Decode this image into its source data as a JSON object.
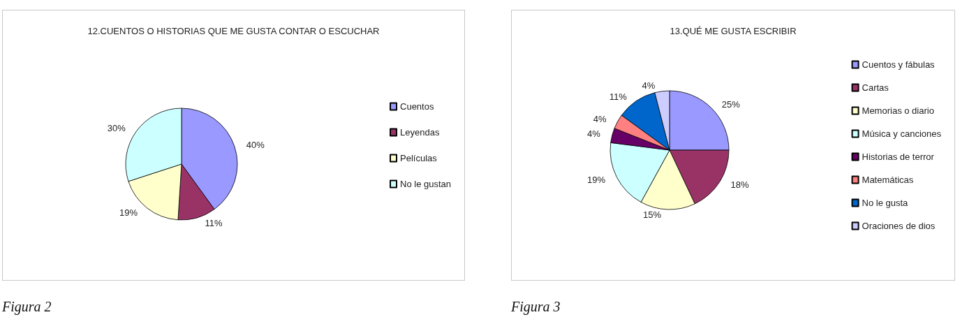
{
  "chart_data": [
    {
      "type": "pie",
      "title": "12.CUENTOS O HISTORIAS QUE ME GUSTA CONTAR O ESCUCHAR",
      "categories": [
        "Cuentos",
        "Leyendas",
        "Películas",
        "No le gustan"
      ],
      "values": [
        40,
        11,
        19,
        30
      ],
      "value_labels": [
        "40%",
        "11%",
        "19%",
        "30%"
      ],
      "colors": [
        "#9999ff",
        "#993366",
        "#ffffcc",
        "#ccffff"
      ],
      "legend": "right",
      "annotations": [
        "Figura 2"
      ]
    },
    {
      "type": "pie",
      "title": "13.QUÉ ME GUSTA ESCRIBIR",
      "categories": [
        "Cuentos y fábulas",
        "Cartas",
        "Memorias o diario",
        "Música y canciones",
        "Historias de terror",
        "Matemáticas",
        "No le gusta",
        "Oraciones de dios"
      ],
      "values": [
        25,
        18,
        15,
        19,
        4,
        4,
        11,
        4
      ],
      "value_labels": [
        "25%",
        "18%",
        "15%",
        "19%",
        "4%",
        "4%",
        "11%",
        "4%"
      ],
      "colors": [
        "#9999ff",
        "#993366",
        "#ffffcc",
        "#ccffff",
        "#660066",
        "#ff8080",
        "#0066cc",
        "#ccccff"
      ],
      "legend": "right",
      "annotations": [
        "Figura 3"
      ]
    }
  ]
}
